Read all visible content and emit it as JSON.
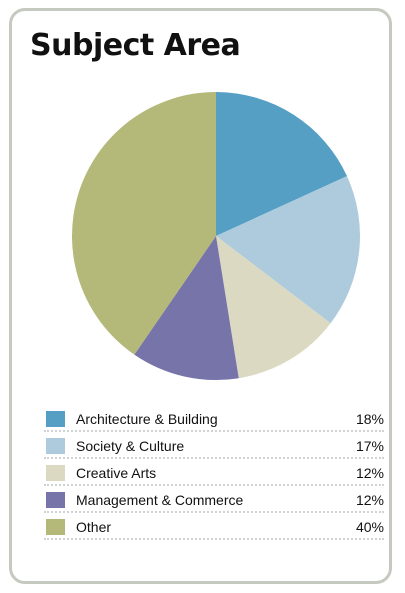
{
  "title": "Subject Area",
  "chart_data": {
    "type": "pie",
    "title": "Subject Area",
    "slices": [
      {
        "label": "Architecture & Building",
        "value": 18,
        "display": "18%",
        "color": "#559fc4"
      },
      {
        "label": "Society & Culture",
        "value": 17,
        "display": "17%",
        "color": "#adcbdd"
      },
      {
        "label": "Creative Arts",
        "value": 12,
        "display": "12%",
        "color": "#dcd9c2"
      },
      {
        "label": "Management & Commerce",
        "value": 12,
        "display": "12%",
        "color": "#7674a8"
      },
      {
        "label": "Other",
        "value": 40,
        "display": "40%",
        "color": "#b4b97a"
      }
    ],
    "legend_position": "bottom"
  }
}
